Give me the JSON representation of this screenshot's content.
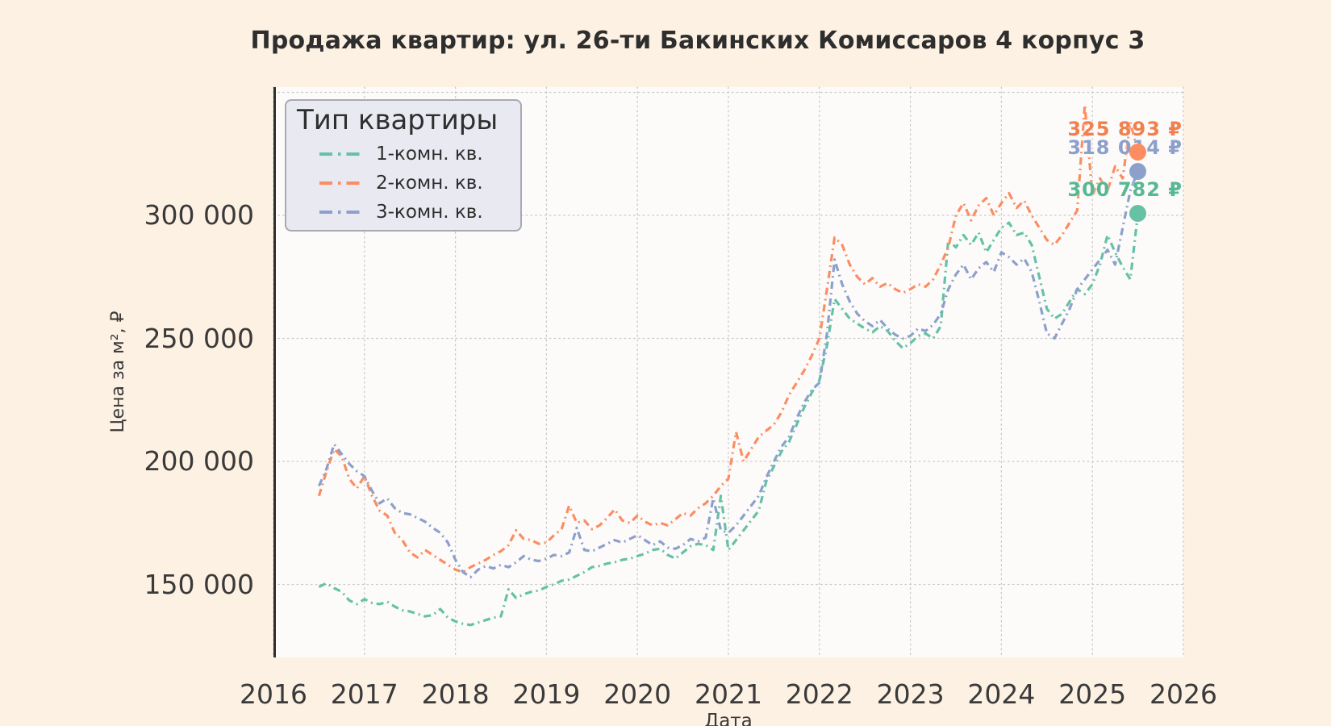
{
  "title": "Продажа квартир: ул. 26-ти Бакинских Комиссаров 4 корпус 3",
  "axes": {
    "x_label": "Дата",
    "y_label": "Цена за м², ₽",
    "x_ticks": [
      "2016",
      "2017",
      "2018",
      "2019",
      "2020",
      "2021",
      "2022",
      "2023",
      "2024",
      "2025",
      "2026"
    ],
    "y_ticks": [
      {
        "label": "150 000",
        "value": 150000
      },
      {
        "label": "200 000",
        "value": 200000
      },
      {
        "label": "250 000",
        "value": 250000
      },
      {
        "label": "300 000",
        "value": 300000
      }
    ]
  },
  "legend": {
    "title": "Тип квартиры",
    "items": [
      {
        "label": "1-комн. кв.",
        "color": "#66c2a5"
      },
      {
        "label": "2-комн. кв.",
        "color": "#fc8d62"
      },
      {
        "label": "3-комн. кв.",
        "color": "#8da0cb"
      }
    ]
  },
  "end_labels": [
    {
      "series": "2-комн. кв.",
      "text": "325 893 ₽",
      "color": "#f0814f"
    },
    {
      "series": "3-комн. кв.",
      "text": "318 014 ₽",
      "color": "#8da0cb"
    },
    {
      "series": "1-комн. кв.",
      "text": "300 782 ₽",
      "color": "#57b894"
    }
  ],
  "colors": {
    "figure_bg": "#fdf1e3",
    "plot_bg": "#fcfbfa",
    "grid": "#c9c9c9",
    "spine": "#2e2e2e",
    "text": "#3a3a3a",
    "legend_bg": "#e9e9f1",
    "legend_border": "#a9a9b3",
    "green": "#66c2a5",
    "orange": "#fc8d62",
    "blue": "#8da0cb"
  },
  "chart_data": {
    "type": "line",
    "title": "Продажа квартир: ул. 26-ти Бакинских Комиссаров 4 корпус 3",
    "xlabel": "Дата",
    "ylabel": "Цена за м², ₽",
    "line_style": "dashdot",
    "grid_style": "dotted",
    "legend_position": "upper left",
    "xlim": [
      2016,
      2026
    ],
    "ylim": [
      120000,
      353000
    ],
    "x_gridlines": [
      2016,
      2017,
      2018,
      2019,
      2020,
      2021,
      2022,
      2023,
      2024,
      2025,
      2026
    ],
    "y_gridlines": [
      150000,
      200000,
      250000,
      300000,
      350000
    ],
    "x_start": 2016.5,
    "x_step": 0.0833333,
    "x_unit": "years",
    "x_end": 2025.5,
    "series": [
      {
        "name": "1-комн. кв.",
        "color": "#66c2a5",
        "final_value": 300782,
        "final_label": "300 782 ₽",
        "values": [
          149000,
          150500,
          148500,
          147000,
          143500,
          142000,
          144000,
          142500,
          142000,
          143000,
          141000,
          139500,
          139000,
          138000,
          137000,
          137500,
          140000,
          136500,
          135000,
          134000,
          133500,
          134500,
          135500,
          136500,
          137000,
          148000,
          144500,
          146000,
          147000,
          147500,
          149000,
          150000,
          151500,
          152000,
          153500,
          155000,
          157000,
          157500,
          158500,
          159000,
          160000,
          160500,
          161500,
          162500,
          164000,
          164500,
          162000,
          160500,
          163000,
          165500,
          166500,
          166000,
          164000,
          186000,
          164000,
          168000,
          172000,
          176000,
          180000,
          192000,
          198000,
          204000,
          208000,
          215000,
          222000,
          228000,
          233000,
          247000,
          266000,
          262000,
          258000,
          256000,
          254000,
          252500,
          255000,
          253000,
          249000,
          246000,
          248000,
          251000,
          252000,
          250000,
          255000,
          290000,
          287000,
          292000,
          288000,
          293000,
          285000,
          290000,
          295000,
          297000,
          292000,
          293000,
          288000,
          275000,
          262000,
          258000,
          260000,
          265000,
          270000,
          268000,
          272000,
          280000,
          292000,
          285000,
          279000,
          274000,
          300782
        ]
      },
      {
        "name": "2-комн. кв.",
        "color": "#fc8d62",
        "final_value": 325893,
        "final_label": "325 893 ₽",
        "values": [
          186000,
          196000,
          205000,
          202000,
          193000,
          189000,
          194000,
          186000,
          180000,
          178000,
          171000,
          168000,
          163000,
          161000,
          164000,
          162000,
          160000,
          158000,
          156000,
          155000,
          157000,
          158500,
          160000,
          162000,
          163500,
          166000,
          172000,
          168500,
          168000,
          166500,
          167000,
          170000,
          172500,
          182000,
          175000,
          176000,
          172500,
          174000,
          177000,
          180500,
          176000,
          175000,
          178000,
          175500,
          174000,
          175000,
          174000,
          176500,
          179000,
          178000,
          181000,
          183000,
          186000,
          190000,
          193000,
          212000,
          200000,
          205000,
          210000,
          212500,
          215000,
          220000,
          227000,
          232000,
          237000,
          243000,
          250000,
          270000,
          291000,
          288000,
          280000,
          275000,
          272000,
          274500,
          271000,
          272500,
          270000,
          268500,
          270000,
          272000,
          271000,
          274000,
          280000,
          287000,
          300000,
          305000,
          298000,
          304000,
          307000,
          300000,
          305000,
          309000,
          303000,
          306000,
          300000,
          295000,
          290000,
          288000,
          292000,
          297000,
          302000,
          345000,
          308000,
          315000,
          310000,
          320000,
          315000,
          338000,
          325893
        ]
      },
      {
        "name": "3-комн. кв.",
        "color": "#8da0cb",
        "final_value": 318014,
        "final_label": "318 014 ₽",
        "values": [
          190000,
          197000,
          207000,
          203000,
          199000,
          196000,
          194000,
          188000,
          183000,
          185000,
          181000,
          179000,
          178500,
          177000,
          175500,
          173000,
          171000,
          167000,
          160000,
          155000,
          153000,
          156000,
          157500,
          156500,
          158000,
          157000,
          159000,
          161500,
          160000,
          159500,
          160500,
          162000,
          161500,
          163000,
          173000,
          164000,
          163500,
          165000,
          166500,
          168000,
          167000,
          168500,
          170000,
          168000,
          166000,
          167500,
          165000,
          164500,
          166000,
          168500,
          167500,
          169000,
          185000,
          172000,
          171000,
          174000,
          178000,
          182000,
          186000,
          193500,
          200000,
          206000,
          210000,
          217500,
          224000,
          229000,
          232000,
          252000,
          282000,
          272000,
          265000,
          260000,
          257000,
          255000,
          257500,
          254000,
          251500,
          250000,
          251000,
          254000,
          253000,
          255500,
          260000,
          270000,
          276000,
          280000,
          274000,
          278500,
          281000,
          277000,
          285000,
          283000,
          280000,
          282500,
          277000,
          265000,
          252000,
          250000,
          256000,
          262000,
          270000,
          274000,
          278000,
          282000,
          286000,
          280000,
          295000,
          310000,
          318014
        ]
      }
    ]
  }
}
